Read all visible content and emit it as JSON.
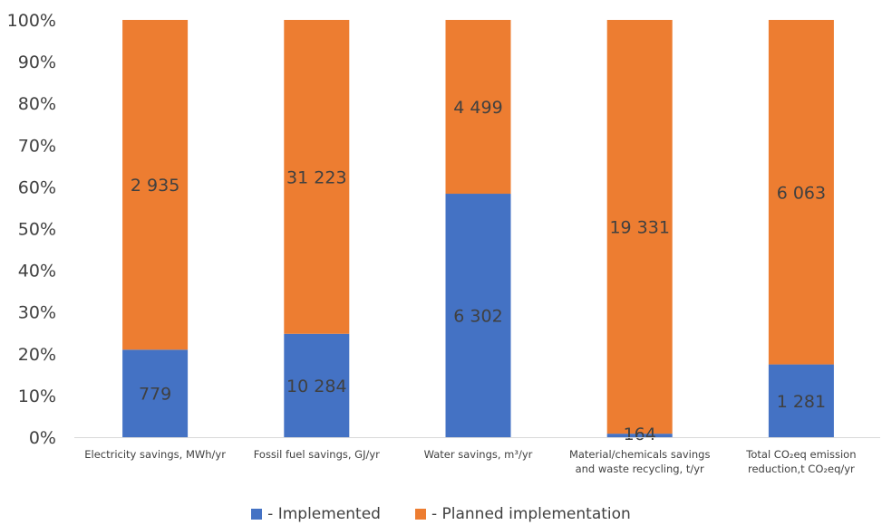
{
  "chart_data": {
    "type": "bar",
    "stacked": "percent",
    "categories": [
      [
        "Electricity savings, MWh/yr"
      ],
      [
        "Fossil fuel savings, GJ/yr"
      ],
      [
        "Water savings, m³/yr"
      ],
      [
        "Material/chemicals savings",
        "and waste recycling, t/yr"
      ],
      [
        "Total CO₂eq emission",
        "reduction,t CO₂eq/yr"
      ]
    ],
    "series": [
      {
        "name": "- Implemented",
        "color": "#4472C4",
        "values": [
          779,
          10284,
          6302,
          164,
          1281
        ],
        "labels": [
          "779",
          "10 284",
          "6 302",
          "164",
          "1 281"
        ]
      },
      {
        "name": "- Planned implementation",
        "color": "#ED7D31",
        "values": [
          2935,
          31223,
          4499,
          19331,
          6063
        ],
        "labels": [
          "2 935",
          "31 223",
          "4 499",
          "19 331",
          "6 063"
        ]
      }
    ],
    "ylim": [
      0,
      100
    ],
    "yticks": [
      "0%",
      "10%",
      "20%",
      "30%",
      "40%",
      "50%",
      "60%",
      "70%",
      "80%",
      "90%",
      "100%"
    ],
    "grid": false,
    "legend_position": "bottom"
  }
}
